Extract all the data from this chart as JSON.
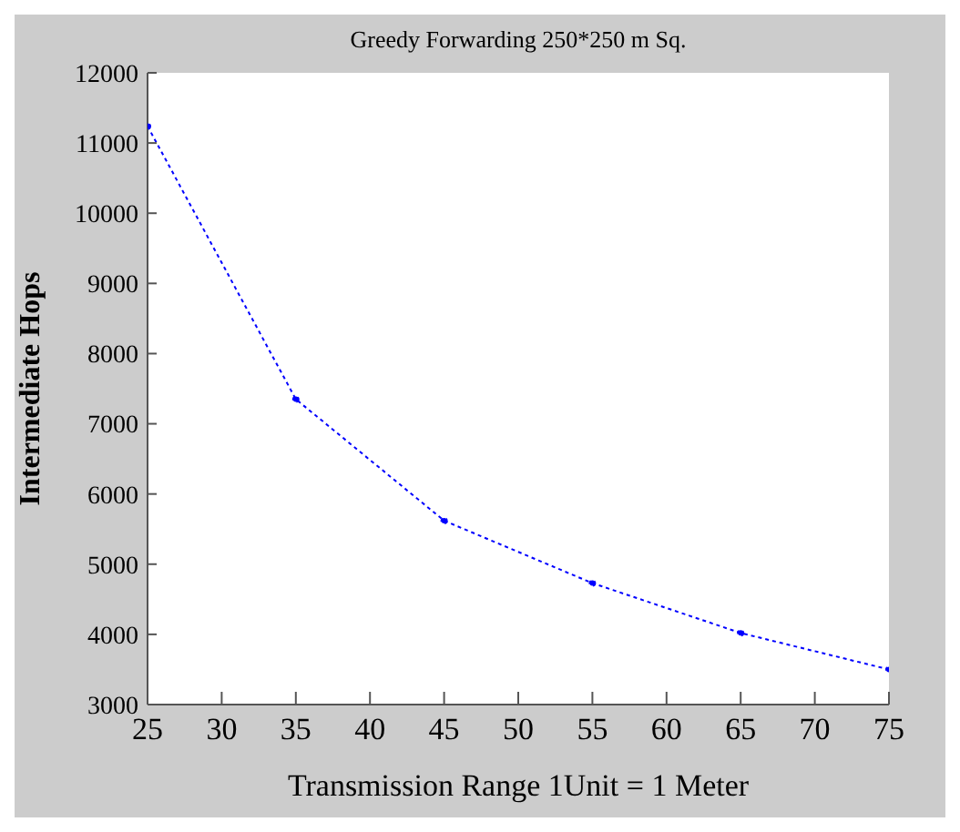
{
  "chart_data": {
    "type": "line",
    "title": "Greedy Forwarding 250*250 m Sq.",
    "xlabel": "Transmission Range 1Unit = 1 Meter",
    "ylabel": "Intermediate Hops",
    "x": [
      25,
      35,
      45,
      55,
      65,
      75
    ],
    "series": [
      {
        "color": "#0000ff",
        "values": [
          11240,
          7350,
          5620,
          4730,
          4020,
          3500
        ]
      }
    ],
    "xlim": [
      25,
      75
    ],
    "xticks": [
      25,
      30,
      35,
      40,
      45,
      50,
      55,
      60,
      65,
      70,
      75
    ],
    "ylim": [
      3000,
      12000
    ],
    "yticks": [
      3000,
      4000,
      5000,
      6000,
      7000,
      8000,
      9000,
      10000,
      11000,
      12000
    ],
    "legend": false,
    "marker": "circle",
    "line_style": "dotted"
  }
}
